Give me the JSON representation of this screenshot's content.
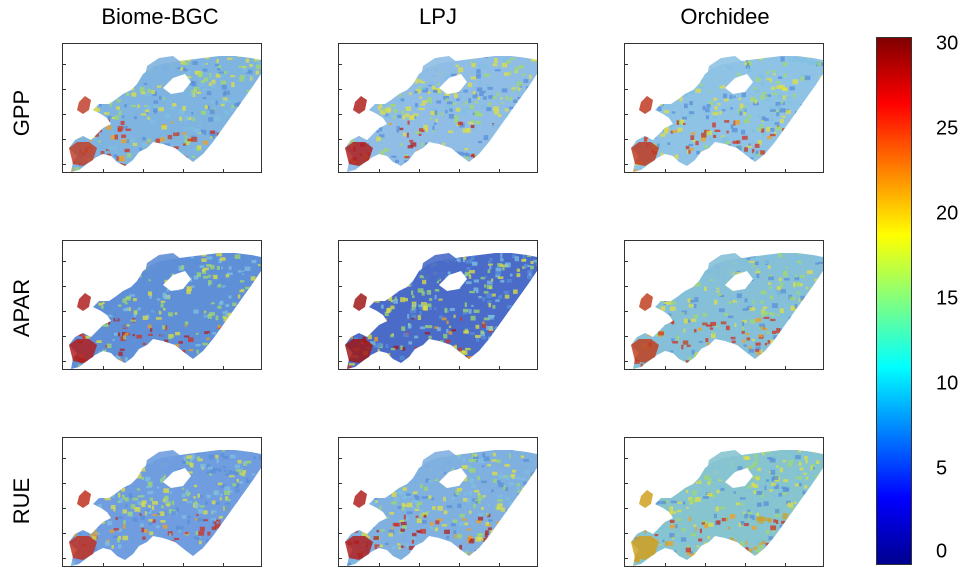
{
  "columns": [
    "Biome-BGC",
    "LPJ",
    "Orchidee"
  ],
  "rows": [
    "GPP",
    "APAR",
    "RUE"
  ],
  "colorbar": {
    "ticks": [
      "30",
      "25",
      "20",
      "15",
      "10",
      "5",
      "0"
    ],
    "min": 0,
    "max": 30,
    "colormap": [
      "#00008f",
      "#0000ff",
      "#0080ff",
      "#00ffff",
      "#80ff80",
      "#ffff00",
      "#ff8000",
      "#ff0000",
      "#800000"
    ]
  },
  "panels": [
    {
      "model": "Biome-BGC",
      "variable": "GPP",
      "base": "#7fb3e0",
      "hot": "#c0402a"
    },
    {
      "model": "LPJ",
      "variable": "GPP",
      "base": "#8fbde6",
      "hot": "#b02020"
    },
    {
      "model": "Orchidee",
      "variable": "GPP",
      "base": "#8fc3e6",
      "hot": "#c03a20"
    },
    {
      "model": "Biome-BGC",
      "variable": "APAR",
      "base": "#5f8fd6",
      "hot": "#b02020"
    },
    {
      "model": "LPJ",
      "variable": "APAR",
      "base": "#4a6cc8",
      "hot": "#a01818"
    },
    {
      "model": "Orchidee",
      "variable": "APAR",
      "base": "#86c0d8",
      "hot": "#c04020"
    },
    {
      "model": "Biome-BGC",
      "variable": "RUE",
      "base": "#6f9de0",
      "hot": "#c03020"
    },
    {
      "model": "LPJ",
      "variable": "RUE",
      "base": "#7fb0e0",
      "hot": "#b02020"
    },
    {
      "model": "Orchidee",
      "variable": "RUE",
      "base": "#86c4d0",
      "hot": "#d0a020"
    }
  ]
}
